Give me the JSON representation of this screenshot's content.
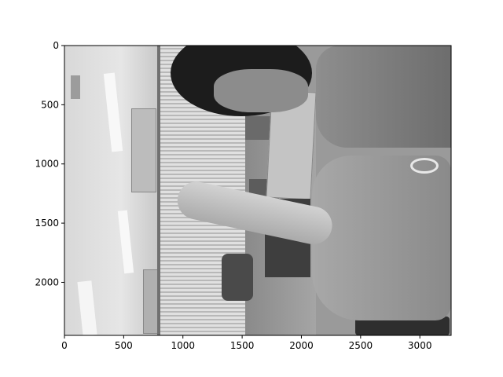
{
  "chart_data": {
    "type": "image",
    "xlim": [
      0,
      3264
    ],
    "ylim": [
      2448,
      0
    ],
    "xticks": [
      0,
      500,
      1000,
      1500,
      2000,
      2500,
      3000
    ],
    "yticks": [
      0,
      500,
      1000,
      1500,
      2000
    ],
    "xtick_labels": [
      "0",
      "500",
      "1000",
      "1500",
      "2000",
      "2500",
      "3000"
    ],
    "ytick_labels": [
      "0",
      "500",
      "1000",
      "1500",
      "2000"
    ],
    "colormap": "grayscale"
  }
}
